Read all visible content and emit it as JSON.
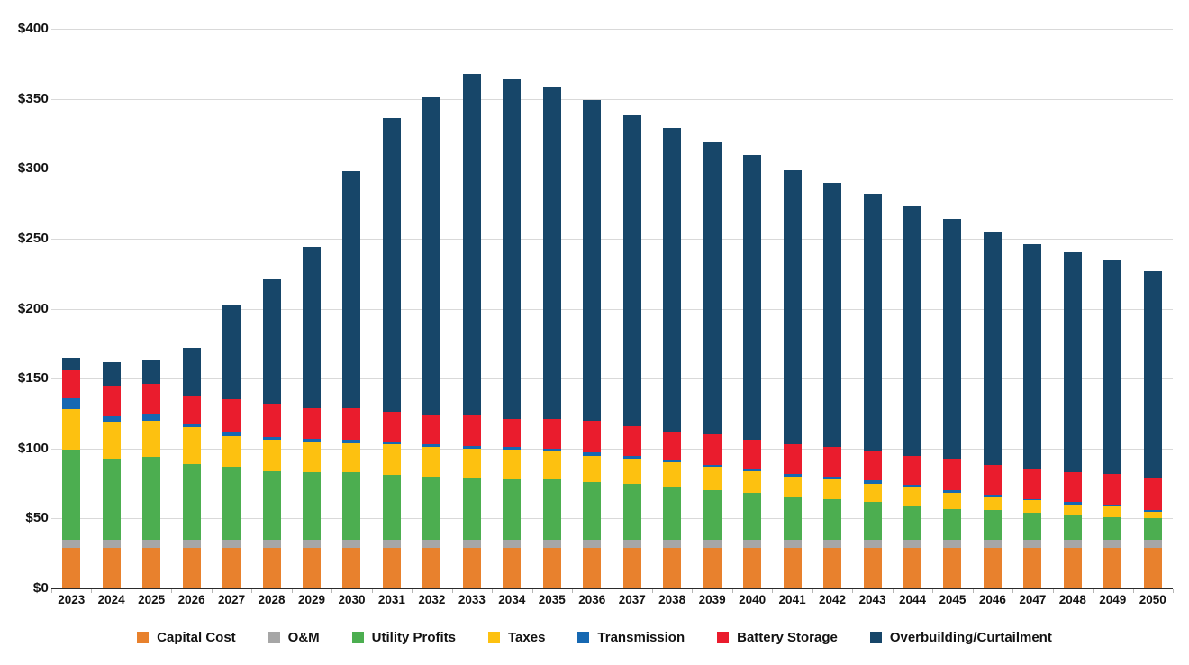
{
  "chart_data": {
    "type": "bar",
    "stacked": true,
    "title": "",
    "xlabel": "",
    "ylabel": "",
    "categories": [
      "2023",
      "2024",
      "2025",
      "2026",
      "2027",
      "2028",
      "2029",
      "2030",
      "2031",
      "2032",
      "2033",
      "2034",
      "2035",
      "2036",
      "2037",
      "2038",
      "2039",
      "2040",
      "2041",
      "2042",
      "2043",
      "2044",
      "2045",
      "2046",
      "2047",
      "2048",
      "2049",
      "2050"
    ],
    "series": [
      {
        "name": "Capital Cost",
        "color": "#E8812D",
        "values": [
          29,
          29,
          29,
          29,
          29,
          29,
          29,
          29,
          29,
          29,
          29,
          29,
          29,
          29,
          29,
          29,
          29,
          29,
          29,
          29,
          29,
          29,
          29,
          29,
          29,
          29,
          29,
          29
        ]
      },
      {
        "name": "O&M",
        "color": "#A6A6A6",
        "values": [
          6,
          6,
          6,
          6,
          6,
          6,
          6,
          6,
          6,
          6,
          6,
          6,
          6,
          6,
          6,
          6,
          6,
          6,
          6,
          6,
          6,
          6,
          6,
          6,
          6,
          6,
          6,
          6
        ]
      },
      {
        "name": "Utility Profits",
        "color": "#4CAE50",
        "values": [
          64,
          58,
          59,
          54,
          52,
          49,
          48,
          48,
          46,
          45,
          44,
          43,
          43,
          41,
          40,
          37,
          35,
          33,
          30,
          29,
          27,
          24,
          22,
          21,
          19,
          17,
          16,
          15
        ]
      },
      {
        "name": "Taxes",
        "color": "#FDC110",
        "values": [
          29,
          26,
          26,
          26,
          22,
          22,
          22,
          21,
          22,
          21,
          21,
          21,
          20,
          19,
          18,
          18,
          17,
          16,
          15,
          14,
          13,
          13,
          11,
          9,
          9,
          8,
          8,
          5
        ]
      },
      {
        "name": "Transmission",
        "color": "#1668B2",
        "values": [
          8,
          4,
          5,
          3,
          3,
          2,
          2,
          2,
          2,
          2,
          2,
          2,
          2,
          2,
          2,
          2,
          1,
          2,
          2,
          2,
          2,
          2,
          2,
          2,
          1,
          2,
          1,
          1
        ]
      },
      {
        "name": "Battery Storage",
        "color": "#EA1C2D",
        "values": [
          20,
          22,
          21,
          19,
          23,
          24,
          22,
          23,
          21,
          21,
          22,
          20,
          21,
          23,
          21,
          20,
          22,
          20,
          21,
          21,
          21,
          21,
          23,
          21,
          21,
          21,
          22,
          23
        ]
      },
      {
        "name": "Overbuilding/Curtailment",
        "color": "#174669",
        "values": [
          9,
          17,
          17,
          35,
          67,
          89,
          115,
          169,
          210,
          227,
          244,
          243,
          237,
          229,
          222,
          217,
          209,
          204,
          196,
          189,
          184,
          178,
          171,
          167,
          161,
          157,
          153,
          148
        ]
      }
    ],
    "totals": [
      165,
      162,
      163,
      172,
      202,
      221,
      244,
      298,
      336,
      351,
      368,
      364,
      358,
      349,
      338,
      329,
      319,
      310,
      299,
      290,
      282,
      273,
      264,
      255,
      246,
      240,
      235,
      227
    ],
    "y_axis": {
      "range": [
        0,
        400
      ],
      "tick_step": 50,
      "tick_labels": [
        "$0",
        "$50",
        "$100",
        "$150",
        "$200",
        "$250",
        "$300",
        "$350",
        "$400"
      ]
    },
    "grid": true,
    "legend_position": "bottom"
  }
}
